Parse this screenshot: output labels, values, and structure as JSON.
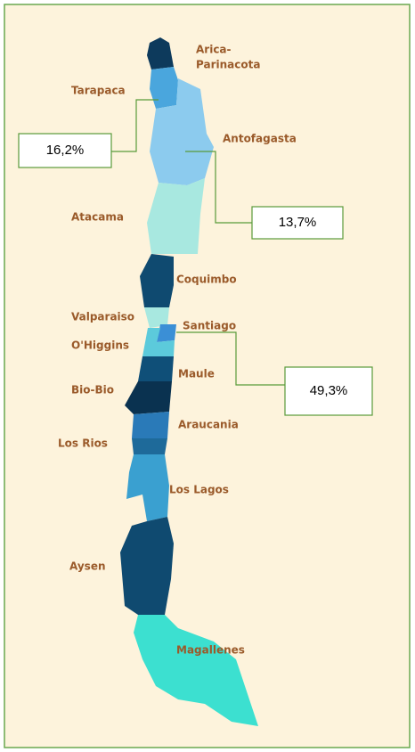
{
  "map": {
    "regions": [
      {
        "label_lines": [
          "Arica-",
          "Parinacota"
        ]
      },
      {
        "label_lines": [
          "Tarapaca"
        ]
      },
      {
        "label_lines": [
          "Antofagasta"
        ]
      },
      {
        "label_lines": [
          "Atacama"
        ]
      },
      {
        "label_lines": [
          "Coquimbo"
        ]
      },
      {
        "label_lines": [
          "Valparaiso"
        ]
      },
      {
        "label_lines": [
          "Santiago"
        ]
      },
      {
        "label_lines": [
          "O'Higgins"
        ]
      },
      {
        "label_lines": [
          "Maule"
        ]
      },
      {
        "label_lines": [
          "Bio-Bio"
        ]
      },
      {
        "label_lines": [
          "Araucania"
        ]
      },
      {
        "label_lines": [
          "Los Rios"
        ]
      },
      {
        "label_lines": [
          "Los Lagos"
        ]
      },
      {
        "label_lines": [
          "Aysen"
        ]
      },
      {
        "label_lines": [
          "Magallenes"
        ]
      }
    ],
    "callouts": [
      {
        "text": "16,2%"
      },
      {
        "text": "13,7%"
      },
      {
        "text": "49,3%"
      }
    ]
  }
}
